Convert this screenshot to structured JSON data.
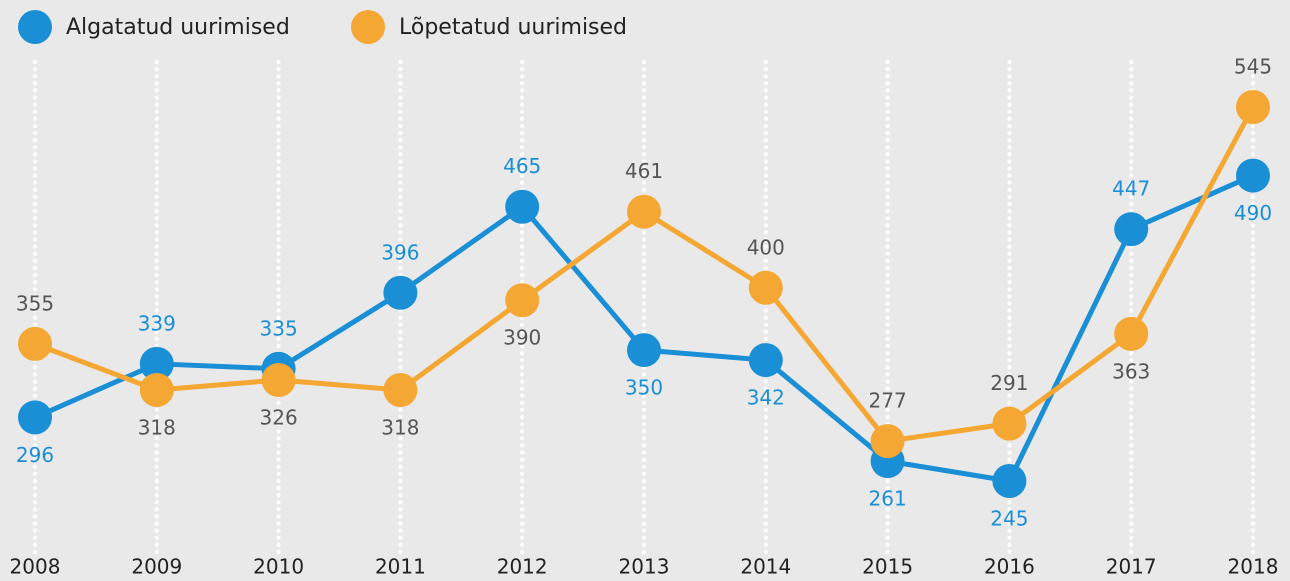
{
  "chart_data": {
    "type": "line",
    "categories": [
      "2008",
      "2009",
      "2010",
      "2011",
      "2012",
      "2013",
      "2014",
      "2015",
      "2016",
      "2017",
      "2018"
    ],
    "series": [
      {
        "name": "Algatatud uurimised",
        "color": "#1a8fd6",
        "values": [
          296,
          339,
          335,
          396,
          465,
          350,
          342,
          261,
          245,
          447,
          490
        ]
      },
      {
        "name": "Lõpetatud uurimised",
        "color": "#f5a733",
        "values": [
          355,
          318,
          326,
          318,
          390,
          461,
          400,
          277,
          291,
          363,
          545
        ]
      }
    ]
  }
}
